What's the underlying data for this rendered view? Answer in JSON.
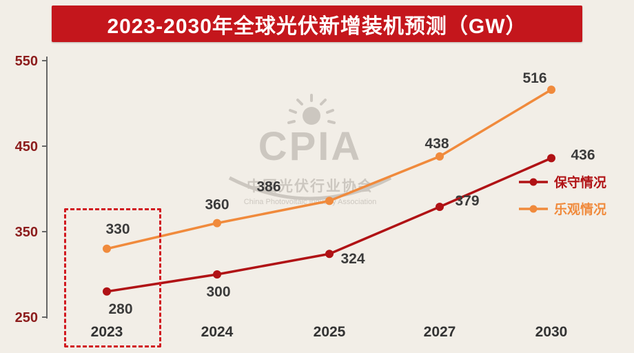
{
  "page": {
    "background": "#f2eee7"
  },
  "title": {
    "text": "2023-2030年全球光伏新增装机预测（GW）",
    "bg_color": "#c4161c",
    "text_color": "#ffffff"
  },
  "watermark": {
    "acronym": "CPIA",
    "cn_name": "中国光伏行业协会",
    "en_name": "China Photovoltaic Industry Association"
  },
  "axis": {
    "y_label_color": "#8c1c1c",
    "x_label_color": "#333333",
    "axis_color": "#666666",
    "data_label_color": "#3b3b3b"
  },
  "chart_data": {
    "type": "line",
    "title": "2023-2030年全球光伏新增装机预测（GW）",
    "xlabel": "",
    "ylabel": "GW",
    "categories": [
      "2023",
      "2024",
      "2025",
      "2027",
      "2030"
    ],
    "series": [
      {
        "key": "conservative",
        "name": "保守情况",
        "color": "#b01215",
        "values": [
          280,
          300,
          324,
          379,
          436
        ]
      },
      {
        "key": "optimistic",
        "name": "乐观情况",
        "color": "#f08a3c",
        "values": [
          330,
          360,
          386,
          438,
          516
        ]
      }
    ],
    "yticks": [
      250,
      350,
      450,
      550
    ],
    "ylim": [
      250,
      550
    ],
    "grid": false,
    "legend_position": "right",
    "highlight": {
      "category": "2023",
      "style": "dashed-red-box"
    }
  }
}
